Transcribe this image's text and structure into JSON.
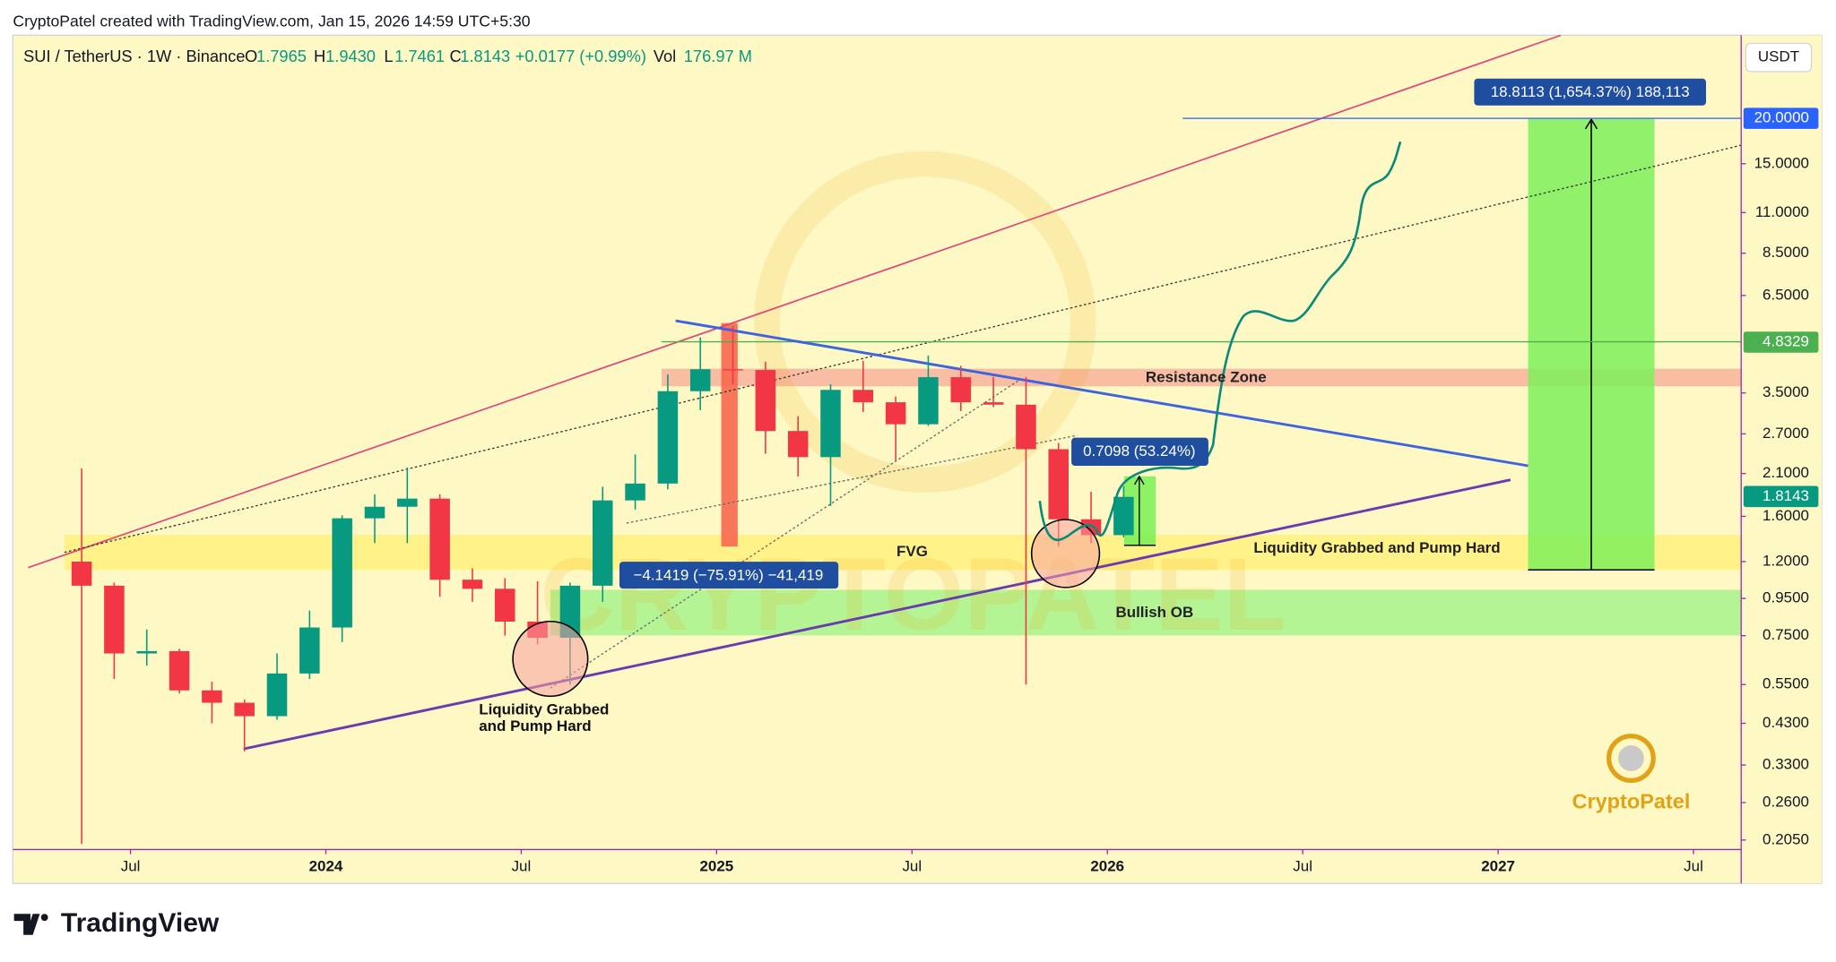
{
  "header": "CryptoPatel created with TradingView.com, Jan 15, 2026 14:59 UTC+5:30",
  "brand": "TradingView",
  "chart_data": {
    "type": "candlestick",
    "currency": "USDT",
    "legend": {
      "symbol": "SUI / TetherUS · 1W · Binance",
      "fields": [
        {
          "key": "O",
          "value": "1.7965"
        },
        {
          "key": "H",
          "value": "1.9430"
        },
        {
          "key": "L",
          "value": "1.7461"
        },
        {
          "key": "C",
          "value": "1.8143"
        }
      ],
      "change": "+0.0177 (+0.99%)",
      "vol_key": "Vol",
      "vol_value": "176.97 M"
    },
    "x": [
      "2023-05",
      "2023-06",
      "2023-07",
      "2023-08",
      "2023-09",
      "2023-10",
      "2023-11",
      "2023-12",
      "2024-01",
      "2024-02",
      "2024-03",
      "2024-04",
      "2024-05",
      "2024-06",
      "2024-07",
      "2024-08",
      "2024-09",
      "2024-10",
      "2024-11",
      "2024-12",
      "2025-01",
      "2025-02",
      "2025-03",
      "2025-04",
      "2025-05",
      "2025-06",
      "2025-07",
      "2025-08",
      "2025-09",
      "2025-10",
      "2025-11",
      "2025-12",
      "2026-01"
    ],
    "ohlc": {
      "open": [
        1.2,
        1.03,
        0.67,
        0.68,
        0.53,
        0.49,
        0.45,
        0.59,
        0.79,
        1.58,
        1.7,
        1.79,
        1.07,
        1.01,
        0.82,
        0.74,
        1.03,
        1.77,
        1.97,
        3.54,
        4.07,
        4.05,
        2.75,
        2.33,
        3.57,
        3.3,
        2.87,
        3.87,
        3.3,
        3.25,
        2.45,
        1.57,
        1.42
      ],
      "high": [
        2.17,
        1.05,
        0.78,
        0.69,
        0.56,
        0.5,
        0.67,
        0.88,
        1.61,
        1.84,
        2.18,
        1.84,
        1.15,
        1.08,
        1.06,
        1.05,
        1.93,
        2.37,
        3.94,
        4.98,
        5.35,
        4.27,
        3.02,
        3.7,
        4.29,
        3.42,
        4.44,
        4.16,
        3.88,
        3.87,
        2.55,
        1.87,
        1.94
      ],
      "low": [
        0.2,
        0.57,
        0.62,
        0.52,
        0.43,
        0.36,
        0.44,
        0.57,
        0.72,
        1.35,
        1.35,
        0.96,
        0.93,
        0.75,
        0.71,
        0.55,
        0.93,
        1.67,
        1.9,
        3.14,
        3.7,
        2.38,
        2.06,
        1.71,
        3.1,
        2.28,
        2.84,
        3.12,
        3.2,
        0.55,
        1.32,
        1.35,
        1.4
      ],
      "close": [
        1.03,
        0.67,
        0.68,
        0.53,
        0.49,
        0.45,
        0.59,
        0.79,
        1.58,
        1.7,
        1.79,
        1.07,
        1.01,
        0.82,
        0.74,
        1.03,
        1.77,
        1.97,
        3.54,
        4.07,
        4.05,
        2.75,
        2.33,
        3.57,
        3.3,
        2.87,
        3.87,
        3.3,
        3.25,
        2.45,
        1.57,
        1.42,
        1.81
      ]
    },
    "up_color": "#089981",
    "down_color": "#f23645",
    "log_scale": true,
    "grid": false,
    "xlim": [
      2023.199,
      2027.622
    ],
    "xticks": [
      {
        "value": 2023.5,
        "label": "Jul"
      },
      {
        "value": 2024,
        "label": "2024"
      },
      {
        "value": 2024.5,
        "label": "Jul"
      },
      {
        "value": 2025,
        "label": "2025"
      },
      {
        "value": 2025.5,
        "label": "Jul"
      },
      {
        "value": 2026,
        "label": "2026"
      },
      {
        "value": 2026.5,
        "label": "Jul"
      },
      {
        "value": 2027,
        "label": "2027"
      },
      {
        "value": 2027.5,
        "label": "Jul"
      }
    ],
    "ylim": [
      0.193,
      33.9
    ],
    "yticks": [
      {
        "value": 15,
        "label": "15.0000"
      },
      {
        "value": 11,
        "label": "11.0000"
      },
      {
        "value": 8.5,
        "label": "8.5000"
      },
      {
        "value": 6.5,
        "label": "6.5000"
      },
      {
        "value": 3.5,
        "label": "3.5000"
      },
      {
        "value": 2.7,
        "label": "2.7000"
      },
      {
        "value": 2.1,
        "label": "2.1000"
      },
      {
        "value": 1.6,
        "label": "1.6000"
      },
      {
        "value": 1.2,
        "label": "1.2000"
      },
      {
        "value": 0.95,
        "label": "0.9500"
      },
      {
        "value": 0.75,
        "label": "0.7500"
      },
      {
        "value": 0.55,
        "label": "0.5500"
      },
      {
        "value": 0.43,
        "label": "0.4300"
      },
      {
        "value": 0.33,
        "label": "0.3300"
      },
      {
        "value": 0.26,
        "label": "0.2600"
      },
      {
        "value": 0.205,
        "label": "0.2050"
      }
    ],
    "price_tags": [
      {
        "value": 20,
        "label": "20.0000",
        "color": "#2962ff"
      },
      {
        "value": 4.8329,
        "label": "4.8329",
        "color": "#4caf50"
      },
      {
        "value": 1.8143,
        "label": "1.8143",
        "color": "#089981"
      }
    ],
    "annotations": {
      "target_measure": "18.8113 (1,654.37%) 188,113",
      "bounce_measure": "0.7098 (53.24%)",
      "drop_measure": "−4.1419 (−75.91%) −41,419",
      "resistance_zone": "Resistance Zone",
      "fvg": "FVG",
      "liquidity_right": "Liquidity Grabbed and Pump Hard",
      "bullish_ob": "Bullish OB",
      "liquidity_left": [
        "Liquidity Grabbed",
        "and Pump Hard"
      ],
      "watermark": "CRYPTOPATEL",
      "logo": "CryptoPatel"
    }
  }
}
